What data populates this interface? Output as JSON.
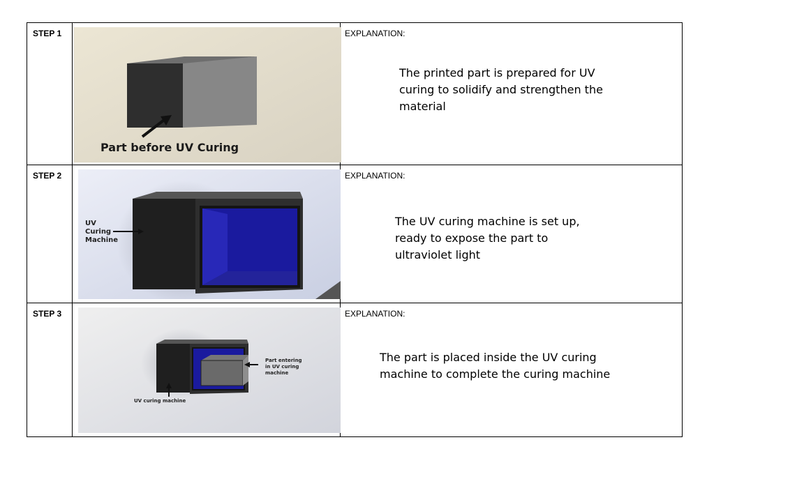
{
  "steps": [
    {
      "label": "STEP 1",
      "explanation_heading": "EXPLANATION:",
      "explanation_text": "The printed part is prepared for UV curing to solidify and strengthen the material",
      "image_caption": "Part before UV Curing"
    },
    {
      "label": "STEP 2",
      "explanation_heading": "EXPLANATION:",
      "explanation_text": "The UV curing machine is set up, ready to expose the part to ultraviolet light",
      "image_caption_lines": [
        "UV",
        "Curing",
        "Machine"
      ]
    },
    {
      "label": "STEP 3",
      "explanation_heading": "EXPLANATION:",
      "explanation_text": "The part is placed inside the UV curing machine to complete the curing machine",
      "image_caption_part_lines": [
        "Part entering",
        "in UV curing",
        "machine"
      ],
      "image_caption_machine": "UV curing machine"
    }
  ],
  "colors": {
    "border": "#000000",
    "uv_blue": "#1a1a9e",
    "box_dark": "#2a2a2a",
    "box_mid": "#858585"
  }
}
